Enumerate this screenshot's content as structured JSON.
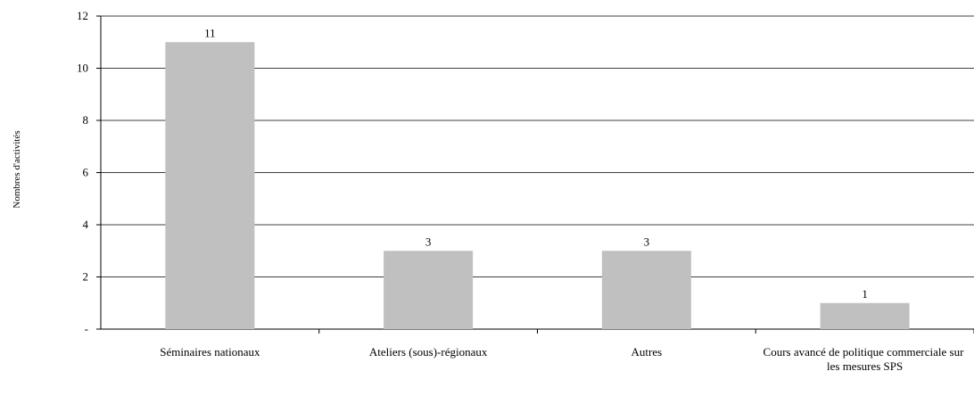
{
  "chart_data": {
    "type": "bar",
    "y_label": "Nombres d'activités",
    "categories": [
      "Séminaires nationaux",
      "Ateliers (sous)-régionaux",
      "Autres",
      "Cours avancé de politique commerciale sur les mesures SPS"
    ],
    "values": [
      11,
      3,
      3,
      1
    ],
    "color": "#c0c0c0",
    "ylim": [
      0,
      12
    ],
    "yticks": [
      {
        "value": 0,
        "label": "-"
      },
      2,
      4,
      6,
      8,
      10,
      12
    ],
    "grid": true
  }
}
